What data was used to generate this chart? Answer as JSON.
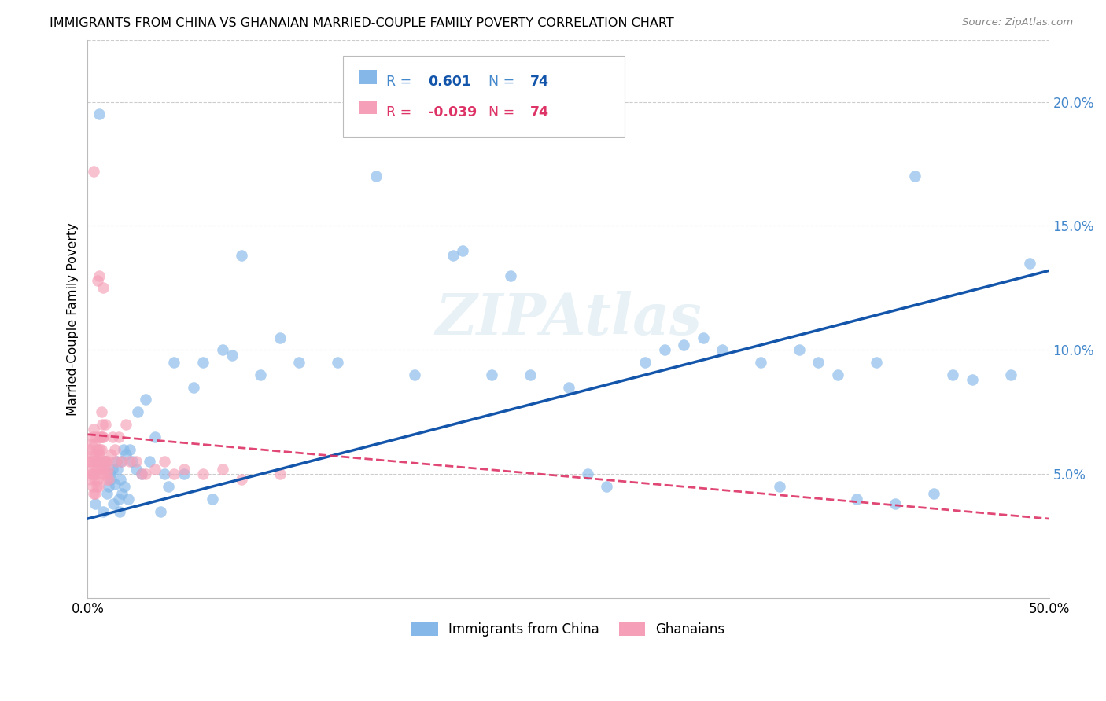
{
  "title": "IMMIGRANTS FROM CHINA VS GHANAIAN MARRIED-COUPLE FAMILY POVERTY CORRELATION CHART",
  "source": "Source: ZipAtlas.com",
  "ylabel": "Married-Couple Family Poverty",
  "ytick_vals": [
    5.0,
    10.0,
    15.0,
    20.0
  ],
  "ytick_labels": [
    "5.0%",
    "10.0%",
    "15.0%",
    "20.0%"
  ],
  "xmin": 0.0,
  "xmax": 50.0,
  "ymin": 0.0,
  "ymax": 22.5,
  "legend_label_blue": "Immigrants from China",
  "legend_label_pink": "Ghanaians",
  "blue_color": "#85b8e8",
  "pink_color": "#f5a0b8",
  "trendline_blue": "#1255aa",
  "trendline_pink": "#dd3366",
  "watermark": "ZIPAtlas",
  "trendline_blue_x0": 0.0,
  "trendline_blue_y0": 3.2,
  "trendline_blue_x1": 50.0,
  "trendline_blue_y1": 13.2,
  "trendline_pink_x0": 0.0,
  "trendline_pink_y0": 6.6,
  "trendline_pink_x1": 50.0,
  "trendline_pink_y1": 3.2,
  "blue_x": [
    0.4,
    0.6,
    0.8,
    0.9,
    1.0,
    1.1,
    1.15,
    1.2,
    1.3,
    1.35,
    1.4,
    1.5,
    1.55,
    1.6,
    1.65,
    1.7,
    1.75,
    1.8,
    1.85,
    1.9,
    2.0,
    2.1,
    2.2,
    2.3,
    2.5,
    2.6,
    2.8,
    3.0,
    3.2,
    3.5,
    3.8,
    4.0,
    4.2,
    4.5,
    5.0,
    5.5,
    6.0,
    6.5,
    7.0,
    7.5,
    8.0,
    9.0,
    10.0,
    11.0,
    13.0,
    15.0,
    17.0,
    19.0,
    21.0,
    23.0,
    25.0,
    27.0,
    29.0,
    31.0,
    33.0,
    35.0,
    37.0,
    39.0,
    40.0,
    42.0,
    44.0,
    45.0,
    46.0,
    48.0,
    49.0,
    19.5,
    22.0,
    26.0,
    30.0,
    32.0,
    36.0,
    38.0,
    41.0,
    43.0
  ],
  "blue_y": [
    3.8,
    19.5,
    3.5,
    5.5,
    4.2,
    4.5,
    5.0,
    4.8,
    5.2,
    3.8,
    4.6,
    5.5,
    5.2,
    4.0,
    3.5,
    4.8,
    5.5,
    4.2,
    6.0,
    4.5,
    5.8,
    4.0,
    6.0,
    5.5,
    5.2,
    7.5,
    5.0,
    8.0,
    5.5,
    6.5,
    3.5,
    5.0,
    4.5,
    9.5,
    5.0,
    8.5,
    9.5,
    4.0,
    10.0,
    9.8,
    13.8,
    9.0,
    10.5,
    9.5,
    9.5,
    17.0,
    9.0,
    13.8,
    9.0,
    9.0,
    8.5,
    4.5,
    9.5,
    10.2,
    10.0,
    9.5,
    10.0,
    9.0,
    4.0,
    3.8,
    4.2,
    9.0,
    8.8,
    9.0,
    13.5,
    14.0,
    13.0,
    5.0,
    10.0,
    10.5,
    4.5,
    9.5,
    9.5,
    17.0
  ],
  "pink_x": [
    0.05,
    0.1,
    0.12,
    0.15,
    0.15,
    0.18,
    0.2,
    0.22,
    0.25,
    0.25,
    0.28,
    0.3,
    0.3,
    0.32,
    0.35,
    0.35,
    0.38,
    0.4,
    0.4,
    0.42,
    0.45,
    0.45,
    0.48,
    0.5,
    0.5,
    0.52,
    0.55,
    0.55,
    0.58,
    0.6,
    0.62,
    0.65,
    0.65,
    0.68,
    0.7,
    0.7,
    0.72,
    0.75,
    0.78,
    0.8,
    0.82,
    0.85,
    0.88,
    0.9,
    0.92,
    0.95,
    0.98,
    1.0,
    1.0,
    1.05,
    1.1,
    1.2,
    1.3,
    1.4,
    1.5,
    1.6,
    1.8,
    2.0,
    2.2,
    2.5,
    2.8,
    3.0,
    3.5,
    4.0,
    4.5,
    5.0,
    6.0,
    7.0,
    8.0,
    10.0,
    0.3,
    0.5,
    0.6,
    0.8
  ],
  "pink_y": [
    5.5,
    5.2,
    6.0,
    4.8,
    5.5,
    6.2,
    5.0,
    5.8,
    4.5,
    6.5,
    5.0,
    5.5,
    6.8,
    4.2,
    4.8,
    6.2,
    5.5,
    4.2,
    5.8,
    5.0,
    5.2,
    6.5,
    4.5,
    4.8,
    6.0,
    5.5,
    5.8,
    4.5,
    5.2,
    5.8,
    6.5,
    6.0,
    5.5,
    6.5,
    6.0,
    5.2,
    7.5,
    7.0,
    6.5,
    6.5,
    5.0,
    5.5,
    5.2,
    5.5,
    7.0,
    5.5,
    4.8,
    5.0,
    5.5,
    5.2,
    4.8,
    5.8,
    6.5,
    6.0,
    5.5,
    6.5,
    5.5,
    7.0,
    5.5,
    5.5,
    5.0,
    5.0,
    5.2,
    5.5,
    5.0,
    5.2,
    5.0,
    5.2,
    4.8,
    5.0,
    17.2,
    12.8,
    13.0,
    12.5
  ]
}
